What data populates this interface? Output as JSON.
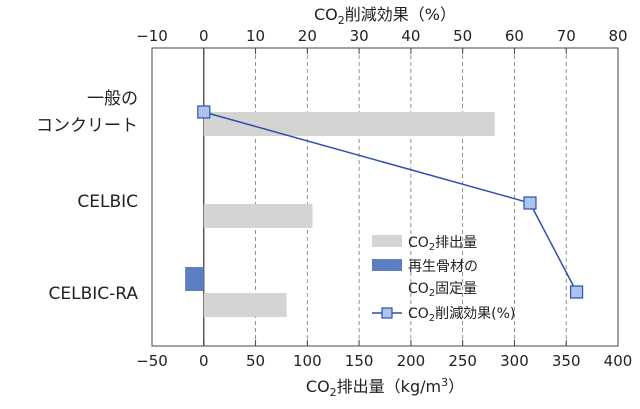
{
  "chart_data": {
    "type": "bar",
    "orientation": "horizontal",
    "categories": [
      [
        "一般の",
        "コンクリート"
      ],
      [
        "CELBIC"
      ],
      [
        "CELBIC-RA"
      ]
    ],
    "bottom_axis": {
      "label_main": "CO",
      "label_sub": "2",
      "label_rest": "排出量（kg/m",
      "label_sup": "3",
      "label_end": "）",
      "range": [
        -50,
        400
      ],
      "ticks": [
        -50,
        0,
        50,
        100,
        150,
        200,
        250,
        300,
        350,
        400
      ],
      "tick_labels": [
        "−50",
        "0",
        "50",
        "100",
        "150",
        "200",
        "250",
        "300",
        "350",
        "400"
      ]
    },
    "top_axis": {
      "label_main": "CO",
      "label_sub": "2",
      "label_rest": "削減効果（%）",
      "range": [
        -10,
        80
      ],
      "ticks": [
        -10,
        0,
        10,
        20,
        30,
        40,
        50,
        60,
        70,
        80
      ],
      "tick_labels": [
        "−10",
        "0",
        "10",
        "20",
        "30",
        "40",
        "50",
        "60",
        "70",
        "80"
      ]
    },
    "grid": "vertical dashed at top-axis ticks",
    "series": [
      {
        "name_main": "CO",
        "name_sub": "2",
        "name_rest": "排出量",
        "axis": "bottom",
        "kind": "bar",
        "color": "#d4d4d2",
        "values": [
          281,
          105,
          80
        ]
      },
      {
        "name_line1": "再生骨材の",
        "name_main": "CO",
        "name_sub": "2",
        "name_rest": "固定量",
        "axis": "bottom",
        "kind": "bar",
        "color": "#5b7fc0",
        "values": [
          0,
          0,
          -18
        ]
      },
      {
        "name_main": "CO",
        "name_sub": "2",
        "name_rest": "削減効果(%)",
        "axis": "top",
        "kind": "line",
        "color": "#2f4fb0",
        "marker_fill": "#a9c4ee",
        "values": [
          0,
          63,
          72
        ]
      }
    ],
    "legend_position": "lower-right"
  }
}
